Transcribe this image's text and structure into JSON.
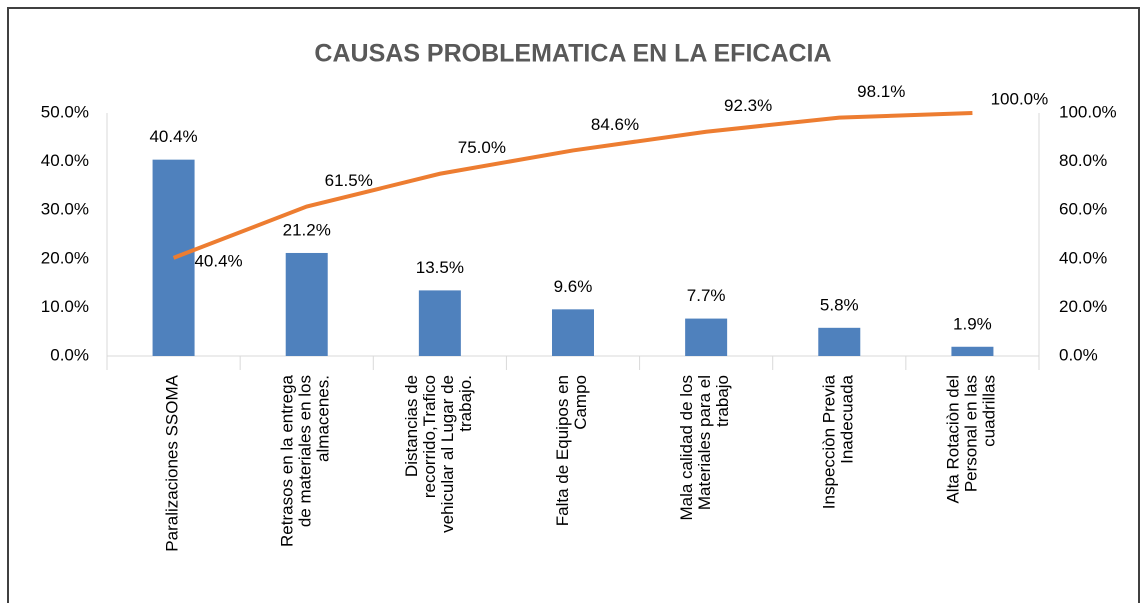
{
  "chart_data": {
    "type": "pareto",
    "title": "CAUSAS PROBLEMATICA EN LA EFICACIA",
    "categories": [
      "Paralizaciones SSOMA",
      "Retrasos en la entrega de materiales en los almacenes.",
      "Distancias de recorrido,Trafico vehicular al Lugar de trabajo.",
      "Falta de Equipos en Campo",
      "Mala calidad de los Materiales para el trabajo",
      "Inspecciòn Previa Inadecuada",
      "Alta Rotaciòn del Personal en las cuadrillas"
    ],
    "series": [
      {
        "type": "bar",
        "color": "#4f81bd",
        "values": [
          40.4,
          21.2,
          13.5,
          9.6,
          7.7,
          5.8,
          1.9
        ],
        "value_labels": [
          "40.4%",
          "21.2%",
          "13.5%",
          "9.6%",
          "7.7%",
          "5.8%",
          "1.9%"
        ]
      },
      {
        "type": "line",
        "axis": "y2",
        "color": "#ed7d31",
        "values": [
          40.4,
          61.5,
          75.0,
          84.6,
          92.3,
          98.1,
          100.0
        ],
        "value_labels": [
          "40.4%",
          "61.5%",
          "75.0%",
          "84.6%",
          "92.3%",
          "98.1%",
          "100.0%"
        ]
      }
    ],
    "ylim": [
      0,
      50
    ],
    "yticks": [
      {
        "value": 0,
        "label": "0.0%"
      },
      {
        "value": 10,
        "label": "10.0%"
      },
      {
        "value": 20,
        "label": "20.0%"
      },
      {
        "value": 30,
        "label": "30.0%"
      },
      {
        "value": 40,
        "label": "40.0%"
      },
      {
        "value": 50,
        "label": "50.0%"
      }
    ],
    "y2lim": [
      0,
      100
    ],
    "y2ticks": [
      {
        "value": 0,
        "label": "0.0%"
      },
      {
        "value": 20,
        "label": "20.0%"
      },
      {
        "value": 40,
        "label": "40.0%"
      },
      {
        "value": 60,
        "label": "60.0%"
      },
      {
        "value": 80,
        "label": "80.0%"
      },
      {
        "value": 100,
        "label": "100.0%"
      }
    ]
  }
}
